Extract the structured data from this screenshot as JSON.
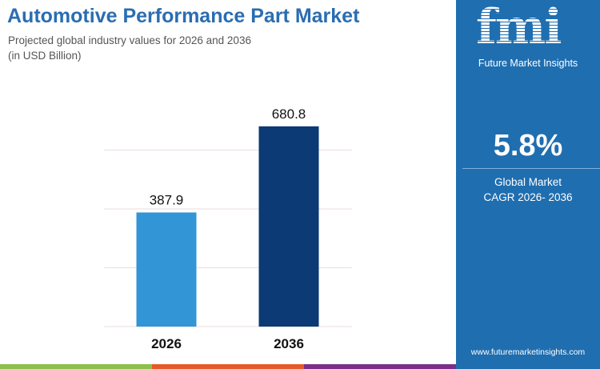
{
  "title": "Automotive Performance Part Market",
  "subtitle_line1": "Projected global industry values for 2026 and 2036",
  "subtitle_line2": "(in USD Billion)",
  "chart_data": {
    "type": "bar",
    "categories": [
      "2026",
      "2036"
    ],
    "values": [
      387.9,
      680.8
    ],
    "data_labels": [
      "387.9",
      "680.8"
    ],
    "ylim": [
      0,
      800
    ],
    "gridlines": [
      0,
      200,
      400,
      600
    ],
    "grid": true,
    "colors": [
      "#3195d6",
      "#0b3a74"
    ]
  },
  "panel": {
    "logo": "fmi",
    "company": "Future Market Insights",
    "cagr": "5.8%",
    "cagr_label_line1": "Global Market",
    "cagr_label_line2": "CAGR 2026- 2036",
    "url": "www.futuremarketinsights.com",
    "background": "#1f6eb0"
  },
  "footer_colors": [
    "#8cc04a",
    "#e5592a",
    "#7b2f87"
  ]
}
